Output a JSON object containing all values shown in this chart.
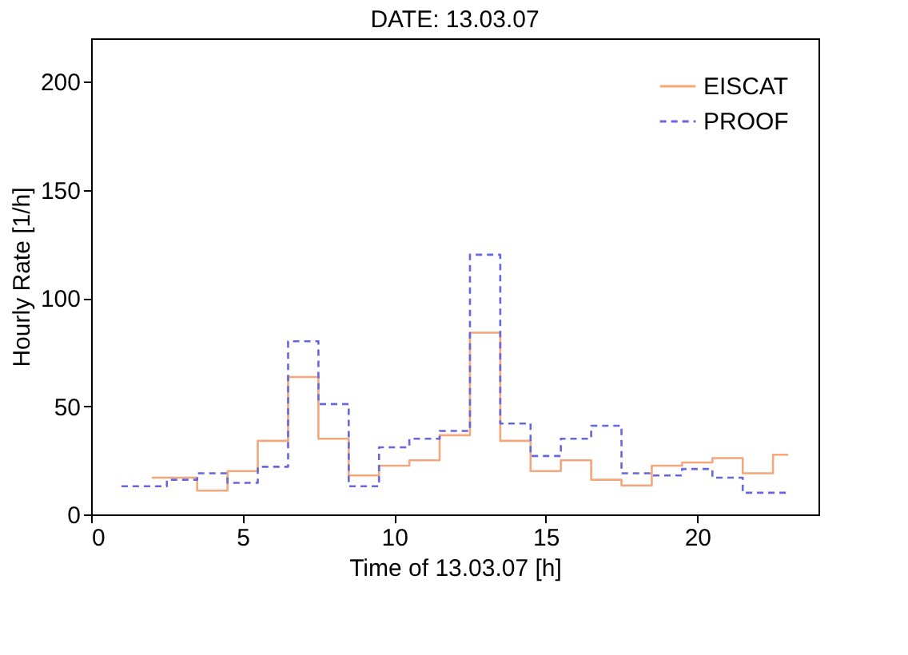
{
  "chart_data": {
    "type": "step",
    "title": "DATE: 13.03.07",
    "xlabel": "Time of 13.03.07 [h]",
    "ylabel": "Hourly Rate [1/h]",
    "xlim": [
      0,
      24
    ],
    "xticks": [
      0,
      5,
      10,
      15,
      20
    ],
    "ylim": [
      0,
      220
    ],
    "yticks": [
      0,
      50,
      100,
      150,
      200
    ],
    "grid": false,
    "legend": "top right",
    "marker": "none",
    "series": [
      {
        "name": "EISCAT",
        "color": "#f4a77a",
        "line_style": "solid",
        "x": [
          2,
          3,
          4,
          5,
          6,
          7,
          8,
          9,
          10,
          11,
          12,
          13,
          14,
          15,
          16,
          17,
          18,
          19,
          20,
          21,
          22,
          23
        ],
        "values": [
          17,
          17,
          11,
          20,
          34,
          63.5,
          35,
          18,
          22.5,
          25,
          36.6,
          84,
          34,
          20,
          25,
          16,
          13.4,
          22.5,
          24,
          26,
          19,
          27.6
        ]
      },
      {
        "name": "PROOF",
        "color": "#6666dd",
        "line_style": "dashed",
        "x": [
          1,
          2,
          3,
          4,
          5,
          6,
          7,
          8,
          9,
          10,
          11,
          12,
          13,
          14,
          15,
          16,
          17,
          18,
          19,
          20,
          21,
          22,
          23
        ],
        "values": [
          13,
          13,
          16,
          19,
          14.6,
          22,
          80,
          51,
          13,
          31,
          35,
          38.6,
          120,
          42,
          27,
          35,
          41,
          19,
          18,
          21,
          17,
          10,
          10
        ]
      }
    ]
  }
}
